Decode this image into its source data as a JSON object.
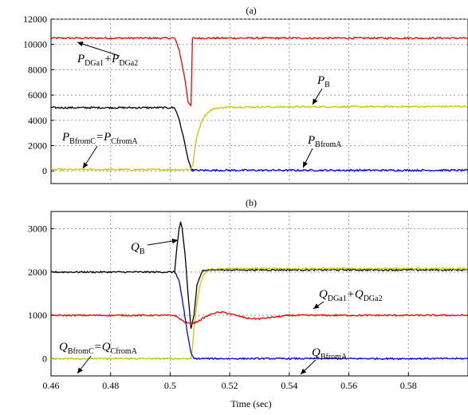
{
  "chart_data": [
    {
      "type": "line",
      "title": "(a)",
      "xlabel": "",
      "ylabel": "",
      "xlim": [
        0.46,
        0.6
      ],
      "ylim": [
        -1000,
        12000
      ],
      "yticks": [
        0,
        2000,
        4000,
        6000,
        8000,
        10000,
        12000
      ],
      "yticklabels": [
        "0",
        "2000",
        "4000",
        "6000",
        "8000",
        "10000",
        "12000"
      ],
      "grid": true,
      "noise": 70,
      "series": [
        {
          "color": "#ff0000",
          "x": [
            0.46,
            0.5015,
            0.503,
            0.505,
            0.506,
            0.507,
            0.5075,
            0.6
          ],
          "y": [
            10500,
            10500,
            9600,
            7200,
            5500,
            5100,
            10500,
            10500
          ]
        },
        {
          "color": "#000000",
          "x": [
            0.46,
            0.5015,
            0.503,
            0.505,
            0.506,
            0.507,
            0.508
          ],
          "y": [
            5000,
            5000,
            4100,
            2100,
            900,
            250,
            0
          ]
        },
        {
          "color": "#c8c800",
          "x": [
            0.46,
            0.5015,
            0.503,
            0.505,
            0.507,
            0.5076,
            0.509,
            0.511,
            0.513,
            0.515,
            0.52,
            0.6
          ],
          "y": [
            100,
            100,
            100,
            100,
            150,
            500,
            2800,
            4200,
            4700,
            4950,
            5050,
            5100
          ]
        },
        {
          "color": "#0000ff",
          "x": [
            0.507,
            0.6
          ],
          "y": [
            50,
            50
          ]
        }
      ],
      "annotations": [
        {
          "label": "P",
          "sub": "DGa1",
          "mid": "+P",
          "sub2": "DGa2"
        },
        {
          "label": "P",
          "sub": "B"
        },
        {
          "label": "P",
          "sub": "BfromC",
          "mid": "=P",
          "sub2": "CfromA"
        },
        {
          "label": "P",
          "sub": "BfromA"
        }
      ]
    },
    {
      "type": "line",
      "title": "(b)",
      "xlabel": "Time (sec)",
      "ylabel": "",
      "xlim": [
        0.46,
        0.6
      ],
      "xticks": [
        0.46,
        0.48,
        0.5,
        0.52,
        0.54,
        0.56,
        0.58
      ],
      "xticklabels": [
        "0.46",
        "0.48",
        "0.5",
        "0.52",
        "0.54",
        "0.56",
        "0.58"
      ],
      "ylim": [
        -400,
        3400
      ],
      "yticks": [
        0,
        1000,
        2000,
        3000
      ],
      "yticklabels": [
        "0",
        "1000",
        "2000",
        "3000"
      ],
      "grid": true,
      "noise": 18,
      "series": [
        {
          "color": "#000000",
          "x": [
            0.46,
            0.5015,
            0.502,
            0.503,
            0.5035,
            0.504,
            0.505,
            0.506,
            0.507,
            0.508,
            0.509,
            0.511,
            0.515,
            0.6
          ],
          "y": [
            2000,
            2000,
            2400,
            3000,
            3150,
            3000,
            2400,
            1500,
            700,
            1000,
            1700,
            2050,
            2050,
            2050
          ]
        },
        {
          "color": "#c8c800",
          "x": [
            0.46,
            0.5015,
            0.505,
            0.507,
            0.5075,
            0.508,
            0.509,
            0.51,
            0.511,
            0.512,
            0.514,
            0.518,
            0.6
          ],
          "y": [
            0,
            0,
            0,
            0,
            250,
            700,
            1300,
            1700,
            1900,
            2000,
            2070,
            2080,
            2080
          ]
        },
        {
          "color": "#ff0000",
          "x": [
            0.46,
            0.5015,
            0.503,
            0.505,
            0.507,
            0.509,
            0.512,
            0.515,
            0.518,
            0.522,
            0.526,
            0.53,
            0.535,
            0.54,
            0.545,
            0.6
          ],
          "y": [
            1000,
            1000,
            930,
            840,
            800,
            850,
            970,
            1060,
            1070,
            1000,
            930,
            920,
            960,
            1000,
            1000,
            1000
          ]
        },
        {
          "color": "#0000ff",
          "x": [
            0.5015,
            0.503,
            0.504,
            0.505,
            0.506,
            0.507,
            0.508,
            0.6
          ],
          "y": [
            2000,
            1800,
            1400,
            950,
            500,
            120,
            0,
            0
          ]
        }
      ],
      "annotations": [
        {
          "label": "Q",
          "sub": "B"
        },
        {
          "label": "Q",
          "sub": "DGa1",
          "mid": "+Q",
          "sub2": "DGa2"
        },
        {
          "label": "Q",
          "sub": "BfromC",
          "mid": "=Q",
          "sub2": "CfromA"
        },
        {
          "label": "Q",
          "sub": "BfromA"
        }
      ]
    }
  ]
}
